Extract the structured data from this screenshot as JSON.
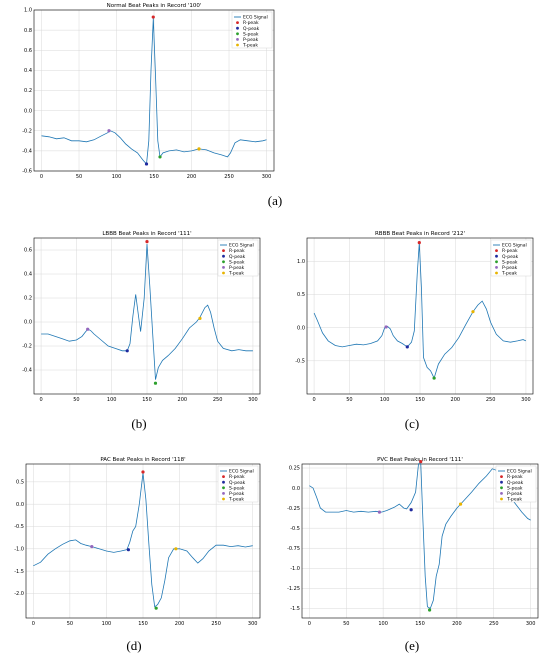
{
  "captions": [
    "(a)",
    "(b)",
    "(c)",
    "(d)",
    "(e)"
  ],
  "legend_labels": [
    "ECG Signal",
    "R-peak",
    "Q-peak",
    "S-peak",
    "P-peak",
    "T-peak"
  ],
  "colors": {
    "signal": "#1f77b4",
    "R": "#d62728",
    "Q": "#1f2a9e",
    "S": "#2ca02c",
    "P": "#9467bd",
    "T": "#e8b400",
    "grid": "#d8d8d8"
  },
  "chart_data": [
    {
      "type": "line",
      "title": "Normal Beat Peaks in Record '100'",
      "xlim": [
        -10,
        310
      ],
      "ylim": [
        -0.6,
        1.0
      ],
      "xticks": [
        0,
        50,
        100,
        150,
        200,
        250,
        300
      ],
      "yticks": [
        -0.6,
        -0.4,
        -0.2,
        0.0,
        0.2,
        0.4,
        0.6,
        0.8,
        1.0
      ],
      "grid": true,
      "legend_position": "top-right",
      "series": [
        {
          "name": "ECG Signal",
          "points": [
            [
              0,
              -0.25
            ],
            [
              10,
              -0.26
            ],
            [
              20,
              -0.28
            ],
            [
              30,
              -0.27
            ],
            [
              40,
              -0.3
            ],
            [
              50,
              -0.3
            ],
            [
              60,
              -0.31
            ],
            [
              70,
              -0.29
            ],
            [
              80,
              -0.25
            ],
            [
              88,
              -0.22
            ],
            [
              92,
              -0.2
            ],
            [
              98,
              -0.22
            ],
            [
              105,
              -0.27
            ],
            [
              112,
              -0.33
            ],
            [
              120,
              -0.38
            ],
            [
              128,
              -0.42
            ],
            [
              135,
              -0.49
            ],
            [
              140,
              -0.53
            ],
            [
              143,
              -0.3
            ],
            [
              146,
              0.4
            ],
            [
              149,
              0.92
            ],
            [
              152,
              0.35
            ],
            [
              155,
              -0.3
            ],
            [
              158,
              -0.46
            ],
            [
              162,
              -0.42
            ],
            [
              170,
              -0.4
            ],
            [
              180,
              -0.39
            ],
            [
              190,
              -0.41
            ],
            [
              200,
              -0.4
            ],
            [
              210,
              -0.38
            ],
            [
              220,
              -0.39
            ],
            [
              230,
              -0.42
            ],
            [
              240,
              -0.44
            ],
            [
              248,
              -0.46
            ],
            [
              252,
              -0.42
            ],
            [
              258,
              -0.32
            ],
            [
              265,
              -0.29
            ],
            [
              275,
              -0.3
            ],
            [
              285,
              -0.31
            ],
            [
              295,
              -0.3
            ],
            [
              300,
              -0.29
            ]
          ]
        }
      ],
      "peaks": {
        "R": [
          149,
          0.93
        ],
        "Q": [
          140,
          -0.53
        ],
        "S": [
          158,
          -0.46
        ],
        "P": [
          90,
          -0.2
        ],
        "T": [
          210,
          -0.38
        ]
      }
    },
    {
      "type": "line",
      "title": "LBBB Beat Peaks in Record '111'",
      "xlim": [
        -10,
        310
      ],
      "ylim": [
        -0.6,
        0.7
      ],
      "xticks": [
        0,
        50,
        100,
        150,
        200,
        250,
        300
      ],
      "yticks": [
        -0.4,
        -0.2,
        0.0,
        0.2,
        0.4,
        0.6
      ],
      "grid": true,
      "legend_position": "top-right",
      "series": [
        {
          "name": "ECG Signal",
          "points": [
            [
              0,
              -0.1
            ],
            [
              10,
              -0.1
            ],
            [
              20,
              -0.12
            ],
            [
              30,
              -0.14
            ],
            [
              40,
              -0.16
            ],
            [
              50,
              -0.15
            ],
            [
              58,
              -0.12
            ],
            [
              62,
              -0.09
            ],
            [
              66,
              -0.06
            ],
            [
              70,
              -0.07
            ],
            [
              75,
              -0.1
            ],
            [
              85,
              -0.15
            ],
            [
              95,
              -0.2
            ],
            [
              105,
              -0.22
            ],
            [
              115,
              -0.24
            ],
            [
              122,
              -0.24
            ],
            [
              126,
              -0.18
            ],
            [
              130,
              0.05
            ],
            [
              134,
              0.23
            ],
            [
              138,
              0.05
            ],
            [
              141,
              -0.08
            ],
            [
              146,
              0.2
            ],
            [
              150,
              0.65
            ],
            [
              154,
              0.3
            ],
            [
              158,
              -0.1
            ],
            [
              162,
              -0.48
            ],
            [
              166,
              -0.38
            ],
            [
              172,
              -0.32
            ],
            [
              180,
              -0.28
            ],
            [
              190,
              -0.22
            ],
            [
              200,
              -0.14
            ],
            [
              210,
              -0.05
            ],
            [
              220,
              0.0
            ],
            [
              225,
              0.04
            ],
            [
              232,
              0.12
            ],
            [
              236,
              0.14
            ],
            [
              240,
              0.08
            ],
            [
              245,
              -0.05
            ],
            [
              250,
              -0.16
            ],
            [
              258,
              -0.22
            ],
            [
              270,
              -0.24
            ],
            [
              280,
              -0.23
            ],
            [
              290,
              -0.24
            ],
            [
              300,
              -0.24
            ]
          ]
        }
      ],
      "peaks": {
        "R": [
          150,
          0.67
        ],
        "Q": [
          122,
          -0.24
        ],
        "S": [
          162,
          -0.51
        ],
        "P": [
          66,
          -0.06
        ],
        "T": [
          225,
          0.03
        ]
      }
    },
    {
      "type": "line",
      "title": "RBBB Beat Peaks in Record '212'",
      "xlim": [
        -10,
        310
      ],
      "ylim": [
        -1.0,
        1.35
      ],
      "xticks": [
        0,
        50,
        100,
        150,
        200,
        250,
        300
      ],
      "yticks": [
        -0.5,
        0.0,
        0.5,
        1.0
      ],
      "grid": true,
      "legend_position": "top-right",
      "series": [
        {
          "name": "ECG Signal",
          "points": [
            [
              0,
              0.22
            ],
            [
              5,
              0.1
            ],
            [
              12,
              -0.08
            ],
            [
              20,
              -0.2
            ],
            [
              30,
              -0.27
            ],
            [
              40,
              -0.29
            ],
            [
              50,
              -0.27
            ],
            [
              60,
              -0.25
            ],
            [
              70,
              -0.26
            ],
            [
              80,
              -0.24
            ],
            [
              90,
              -0.2
            ],
            [
              96,
              -0.12
            ],
            [
              100,
              0.0
            ],
            [
              104,
              0.02
            ],
            [
              108,
              -0.02
            ],
            [
              112,
              -0.12
            ],
            [
              118,
              -0.2
            ],
            [
              125,
              -0.24
            ],
            [
              132,
              -0.29
            ],
            [
              138,
              -0.22
            ],
            [
              142,
              -0.05
            ],
            [
              146,
              0.8
            ],
            [
              149,
              1.28
            ],
            [
              152,
              0.6
            ],
            [
              155,
              -0.45
            ],
            [
              160,
              -0.6
            ],
            [
              165,
              -0.65
            ],
            [
              170,
              -0.76
            ],
            [
              176,
              -0.55
            ],
            [
              185,
              -0.4
            ],
            [
              195,
              -0.3
            ],
            [
              205,
              -0.15
            ],
            [
              215,
              0.05
            ],
            [
              225,
              0.24
            ],
            [
              232,
              0.34
            ],
            [
              238,
              0.4
            ],
            [
              244,
              0.28
            ],
            [
              250,
              0.08
            ],
            [
              258,
              -0.1
            ],
            [
              268,
              -0.2
            ],
            [
              278,
              -0.22
            ],
            [
              288,
              -0.2
            ],
            [
              296,
              -0.18
            ],
            [
              300,
              -0.2
            ]
          ]
        }
      ],
      "peaks": {
        "R": [
          149,
          1.28
        ],
        "Q": [
          132,
          -0.29
        ],
        "S": [
          170,
          -0.76
        ],
        "P": [
          102,
          0.01
        ],
        "T": [
          225,
          0.24
        ]
      }
    },
    {
      "type": "line",
      "title": "PAC Beat Peaks in Record '118'",
      "xlim": [
        -10,
        310
      ],
      "ylim": [
        -2.55,
        0.9
      ],
      "xticks": [
        0,
        50,
        100,
        150,
        200,
        250,
        300
      ],
      "yticks": [
        -2.0,
        -1.5,
        -1.0,
        -0.5,
        0.0,
        0.5
      ],
      "grid": true,
      "legend_position": "top-right",
      "series": [
        {
          "name": "ECG Signal",
          "points": [
            [
              0,
              -1.38
            ],
            [
              10,
              -1.3
            ],
            [
              20,
              -1.12
            ],
            [
              30,
              -1.0
            ],
            [
              40,
              -0.9
            ],
            [
              50,
              -0.82
            ],
            [
              58,
              -0.8
            ],
            [
              65,
              -0.88
            ],
            [
              72,
              -0.92
            ],
            [
              80,
              -0.95
            ],
            [
              90,
              -1.0
            ],
            [
              100,
              -1.05
            ],
            [
              110,
              -1.08
            ],
            [
              120,
              -1.05
            ],
            [
              128,
              -1.02
            ],
            [
              132,
              -0.85
            ],
            [
              136,
              -0.6
            ],
            [
              140,
              -0.5
            ],
            [
              145,
              0.0
            ],
            [
              150,
              0.7
            ],
            [
              154,
              0.1
            ],
            [
              158,
              -0.9
            ],
            [
              162,
              -1.8
            ],
            [
              166,
              -2.3
            ],
            [
              170,
              -2.25
            ],
            [
              175,
              -2.1
            ],
            [
              180,
              -1.7
            ],
            [
              185,
              -1.2
            ],
            [
              192,
              -1.0
            ],
            [
              200,
              -1.0
            ],
            [
              210,
              -1.05
            ],
            [
              218,
              -1.2
            ],
            [
              225,
              -1.32
            ],
            [
              232,
              -1.22
            ],
            [
              240,
              -1.05
            ],
            [
              250,
              -0.92
            ],
            [
              260,
              -0.92
            ],
            [
              270,
              -0.95
            ],
            [
              280,
              -0.93
            ],
            [
              290,
              -0.96
            ],
            [
              300,
              -0.93
            ]
          ]
        }
      ],
      "peaks": {
        "R": [
          150,
          0.72
        ],
        "Q": [
          130,
          -1.02
        ],
        "S": [
          168,
          -2.33
        ],
        "P": [
          80,
          -0.95
        ],
        "T": [
          195,
          -1.0
        ]
      }
    },
    {
      "type": "line",
      "title": "PVC Beat Peaks in Record '111'",
      "xlim": [
        -10,
        310
      ],
      "ylim": [
        -1.62,
        0.3
      ],
      "xticks": [
        0,
        50,
        100,
        150,
        200,
        250,
        300
      ],
      "yticks": [
        -1.5,
        -1.25,
        -1.0,
        -0.75,
        -0.5,
        -0.25,
        0.0,
        0.25
      ],
      "grid": true,
      "legend_position": "top-right",
      "series": [
        {
          "name": "ECG Signal",
          "points": [
            [
              0,
              0.03
            ],
            [
              5,
              0.0
            ],
            [
              10,
              -0.12
            ],
            [
              15,
              -0.25
            ],
            [
              22,
              -0.3
            ],
            [
              30,
              -0.3
            ],
            [
              40,
              -0.3
            ],
            [
              50,
              -0.28
            ],
            [
              60,
              -0.3
            ],
            [
              70,
              -0.29
            ],
            [
              80,
              -0.3
            ],
            [
              90,
              -0.29
            ],
            [
              98,
              -0.3
            ],
            [
              105,
              -0.28
            ],
            [
              115,
              -0.24
            ],
            [
              122,
              -0.2
            ],
            [
              128,
              -0.25
            ],
            [
              132,
              -0.26
            ],
            [
              138,
              -0.18
            ],
            [
              144,
              -0.05
            ],
            [
              148,
              0.3
            ],
            [
              151,
              0.33
            ],
            [
              154,
              -0.4
            ],
            [
              157,
              -1.1
            ],
            [
              160,
              -1.48
            ],
            [
              164,
              -1.5
            ],
            [
              168,
              -1.4
            ],
            [
              172,
              -1.1
            ],
            [
              176,
              -0.95
            ],
            [
              180,
              -0.6
            ],
            [
              185,
              -0.45
            ],
            [
              192,
              -0.35
            ],
            [
              200,
              -0.25
            ],
            [
              210,
              -0.15
            ],
            [
              220,
              -0.05
            ],
            [
              230,
              0.06
            ],
            [
              240,
              0.15
            ],
            [
              248,
              0.24
            ],
            [
              254,
              0.22
            ],
            [
              260,
              0.12
            ],
            [
              268,
              -0.05
            ],
            [
              278,
              -0.18
            ],
            [
              288,
              -0.3
            ],
            [
              296,
              -0.38
            ],
            [
              300,
              -0.4
            ]
          ]
        }
      ],
      "peaks": {
        "R": [
          151,
          0.33
        ],
        "Q": [
          138,
          -0.27
        ],
        "S": [
          163,
          -1.52
        ],
        "P": [
          95,
          -0.3
        ],
        "T": [
          205,
          -0.2
        ]
      }
    }
  ]
}
